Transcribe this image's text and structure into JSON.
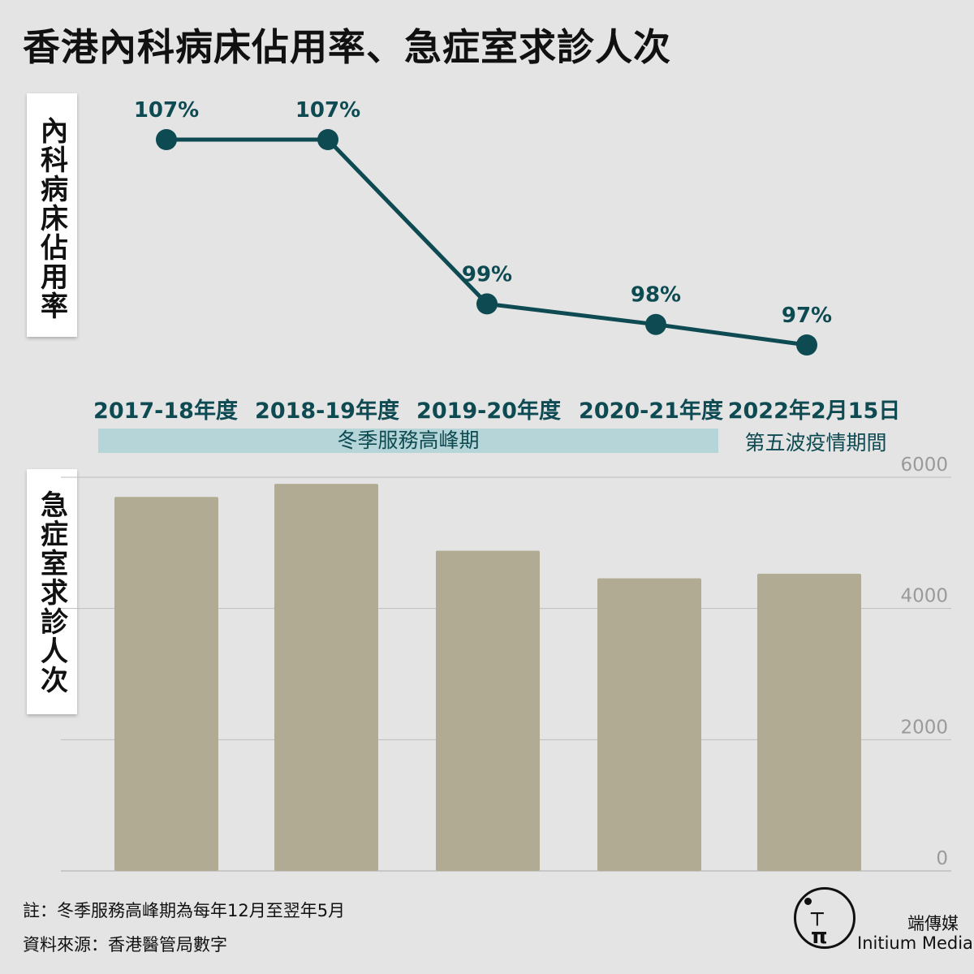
{
  "title": "香港內科病床佔用率、急症室求診人次",
  "top_axis_label": "內科病床佔用率",
  "bottom_axis_label": "急症室求診人次",
  "periods": [
    "2017-18年度",
    "2018-19年度",
    "2019-20年度",
    "2020-21年度",
    "2022年2月15日"
  ],
  "band_label": "冬季服務高峰期",
  "wave_label": "第五波疫情期間",
  "footnotes": {
    "note": "註：冬季服務高峰期為每年12月至翌年5月",
    "source": "資料來源：香港醫管局數字"
  },
  "brand": {
    "cn": "端傳媒",
    "en": "Initium Media"
  },
  "colors": {
    "line": "#0e4a52",
    "bar": "#b2ab94",
    "band": "#b5d5d8",
    "grid": "#bdbdbd",
    "background": "#e4e4e4"
  },
  "chart_data": [
    {
      "type": "line",
      "categories": [
        "2017-18年度",
        "2018-19年度",
        "2019-20年度",
        "2020-21年度",
        "2022年2月15日"
      ],
      "values": [
        107,
        107,
        99,
        98,
        97
      ],
      "data_labels": [
        "107%",
        "107%",
        "99%",
        "98%",
        "97%"
      ],
      "ylabel": "內科病床佔用率",
      "unit": "%"
    },
    {
      "type": "bar",
      "categories": [
        "2017-18年度",
        "2018-19年度",
        "2019-20年度",
        "2020-21年度",
        "2022年2月15日"
      ],
      "values": [
        5700,
        5900,
        4880,
        4460,
        4530
      ],
      "ylabel": "急症室求診人次",
      "ylim": [
        0,
        6000
      ],
      "yticks": [
        0,
        2000,
        4000,
        6000
      ],
      "grid": true
    }
  ]
}
